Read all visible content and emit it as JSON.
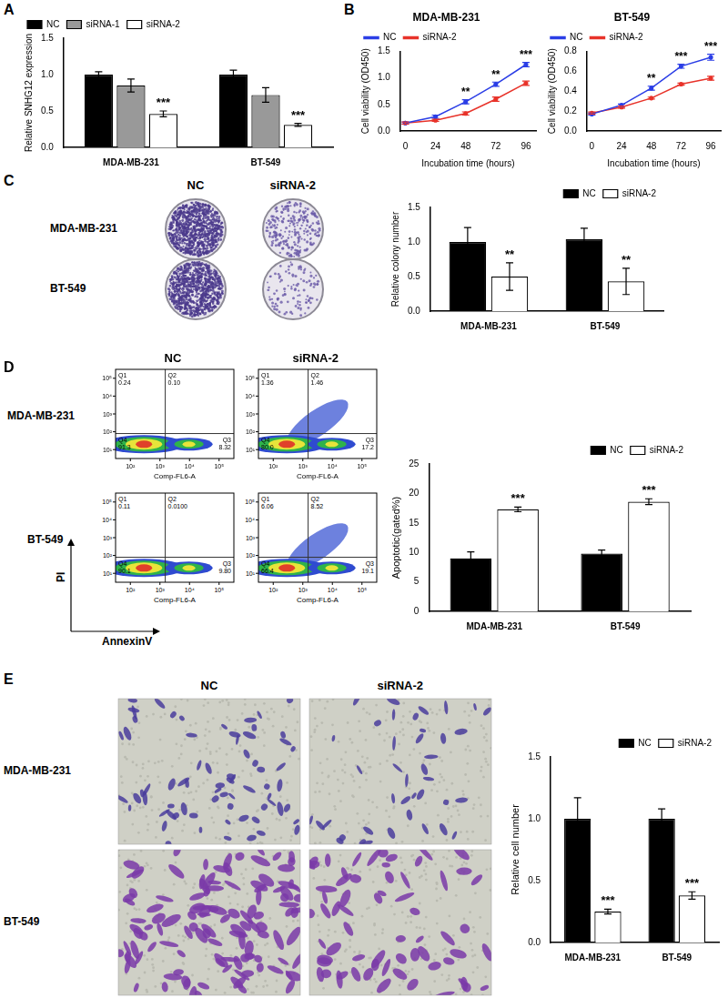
{
  "chart_data": [
    {
      "panel": "A",
      "type": "bar",
      "categories": [
        "MDA-MB-231",
        "BT-549"
      ],
      "y_label": "Relative SNHG12 expression",
      "ylim": [
        0,
        1.5
      ],
      "yticks": [
        {
          "value": 0,
          "label": "0.0"
        },
        {
          "value": 0.5,
          "label": "0.5"
        },
        {
          "value": 1,
          "label": "1.0"
        },
        {
          "value": 1.5,
          "label": "1.5"
        }
      ],
      "grid": false,
      "legend": "top-left",
      "series": [
        {
          "name": "NC",
          "color": "#000000",
          "values": [
            1.0,
            1.0
          ],
          "errors": [
            0.04,
            0.06
          ]
        },
        {
          "name": "siRNA-1",
          "color": "#999999",
          "values": [
            0.85,
            0.72
          ],
          "errors": [
            0.09,
            0.1
          ]
        },
        {
          "name": "siRNA-2",
          "color": "#ffffff",
          "values": [
            0.46,
            0.31
          ],
          "errors": [
            0.04,
            0.02
          ],
          "significance": [
            "***",
            "***"
          ]
        }
      ]
    },
    {
      "panel": "B",
      "type": "line",
      "title": "MDA-MB-231",
      "x": [
        0,
        24,
        48,
        72,
        96
      ],
      "xlim": [
        -4,
        104
      ],
      "xticks": [
        0,
        24,
        48,
        72,
        96
      ],
      "x_label": "Incubation time (hours)",
      "y_label": "Cell viability (OD450)",
      "ylim": [
        0,
        1.5
      ],
      "yticks": [
        {
          "value": 0,
          "label": "0.0"
        },
        {
          "value": 0.5,
          "label": "0.5"
        },
        {
          "value": 1,
          "label": "1.0"
        },
        {
          "value": 1.5,
          "label": "1.5"
        }
      ],
      "grid": false,
      "legend": "top-left",
      "significance": [
        null,
        null,
        "**",
        "**",
        "***"
      ],
      "series": [
        {
          "name": "NC",
          "color": "#2b3ee6",
          "values": [
            0.15,
            0.27,
            0.55,
            0.88,
            1.25
          ],
          "errors": [
            0.02,
            0.03,
            0.04,
            0.04,
            0.04
          ]
        },
        {
          "name": "siRNA-2",
          "color": "#e8332a",
          "values": [
            0.15,
            0.2,
            0.33,
            0.6,
            0.9
          ],
          "errors": [
            0.02,
            0.02,
            0.03,
            0.04,
            0.04
          ]
        }
      ]
    },
    {
      "type": "line",
      "title": "BT-549",
      "x": [
        0,
        24,
        48,
        72,
        96
      ],
      "xlim": [
        -4,
        104
      ],
      "xticks": [
        0,
        24,
        48,
        72,
        96
      ],
      "x_label": "Incubation time (hours)",
      "y_label": "Cell viability (OD450)",
      "ylim": [
        0,
        0.8
      ],
      "yticks": [
        {
          "value": 0,
          "label": "0.0"
        },
        {
          "value": 0.2,
          "label": "0.2"
        },
        {
          "value": 0.4,
          "label": "0.4"
        },
        {
          "value": 0.6,
          "label": "0.6"
        },
        {
          "value": 0.8,
          "label": "0.8"
        }
      ],
      "grid": false,
      "legend": "top-left",
      "significance": [
        null,
        null,
        "**",
        "***",
        "***"
      ],
      "series": [
        {
          "name": "NC",
          "color": "#2b3ee6",
          "values": [
            0.17,
            0.26,
            0.43,
            0.65,
            0.74
          ],
          "errors": [
            0.01,
            0.01,
            0.02,
            0.02,
            0.03
          ]
        },
        {
          "name": "siRNA-2",
          "color": "#e8332a",
          "values": [
            0.18,
            0.24,
            0.33,
            0.47,
            0.53
          ],
          "errors": [
            0.01,
            0.01,
            0.01,
            0.01,
            0.02
          ]
        }
      ]
    },
    {
      "type": "bar",
      "categories": [
        "MDA-MB-231",
        "BT-549"
      ],
      "y_label": "Relative colony number",
      "ylim": [
        0,
        1.5
      ],
      "yticks": [
        {
          "value": 0,
          "label": "0.0"
        },
        {
          "value": 0.5,
          "label": "0.5"
        },
        {
          "value": 1,
          "label": "1.0"
        },
        {
          "value": 1.5,
          "label": "1.5"
        }
      ],
      "grid": false,
      "legend": "top-right",
      "series": [
        {
          "name": "NC",
          "color": "#000000",
          "values": [
            1.0,
            1.04
          ],
          "errors": [
            0.21,
            0.16
          ]
        },
        {
          "name": "siRNA-2",
          "color": "#ffffff",
          "values": [
            0.5,
            0.43
          ],
          "errors": [
            0.2,
            0.19
          ],
          "significance": [
            "**",
            "**"
          ]
        }
      ]
    },
    {
      "type": "bar",
      "categories": [
        "MDA-MB-231",
        "BT-549"
      ],
      "y_label": "Apoptotic(gated%)",
      "ylim": [
        0,
        25
      ],
      "yticks": [
        0,
        5,
        10,
        15,
        20,
        25
      ],
      "grid": false,
      "legend": "top-right",
      "series": [
        {
          "name": "NC",
          "color": "#000000",
          "values": [
            9.0,
            9.8
          ],
          "errors": [
            1.1,
            0.6
          ]
        },
        {
          "name": "siRNA-2",
          "color": "#ffffff",
          "values": [
            17.3,
            18.6
          ],
          "errors": [
            0.4,
            0.5
          ],
          "significance": [
            "***",
            "***"
          ]
        }
      ]
    },
    {
      "type": "bar",
      "categories": [
        "MDA-MB-231",
        "BT-549"
      ],
      "y_label": "Relative cell number",
      "ylim": [
        0,
        1.5
      ],
      "yticks": [
        {
          "value": 0,
          "label": "0.0"
        },
        {
          "value": 0.5,
          "label": "0.5"
        },
        {
          "value": 1,
          "label": "1.0"
        },
        {
          "value": 1.5,
          "label": "1.5"
        }
      ],
      "grid": false,
      "legend": "top-right",
      "series": [
        {
          "name": "NC",
          "color": "#000000",
          "values": [
            1.0,
            1.0
          ],
          "errors": [
            0.17,
            0.08
          ]
        },
        {
          "name": "siRNA-2",
          "color": "#ffffff",
          "values": [
            0.25,
            0.38
          ],
          "errors": [
            0.02,
            0.03
          ],
          "significance": [
            "***",
            "***"
          ]
        }
      ]
    }
  ],
  "colony_images": {
    "panel": "C",
    "columns": [
      "NC",
      "siRNA-2"
    ],
    "rows": [
      "MDA-MB-231",
      "BT-549"
    ]
  },
  "flow_plots": {
    "panel": "D",
    "columns": [
      "NC",
      "siRNA-2"
    ],
    "rows": [
      "MDA-MB-231",
      "BT-549"
    ],
    "x_label": "Comp-FL6-A",
    "x_title": "AnnexinV",
    "y_title": "PI",
    "x_ticks": [
      "10²",
      "10³",
      "10⁴",
      "10⁵"
    ],
    "y_ticks": [
      "10¹",
      "10²",
      "10³",
      "10⁴",
      "10⁵"
    ],
    "plots": [
      [
        [
          {
            "label": "Q1",
            "value": "0.24"
          },
          {
            "label": "Q2",
            "value": "0.10"
          },
          {
            "label": "Q3",
            "value": "8.32"
          },
          {
            "label": "Q4",
            "value": "91.3"
          }
        ],
        [
          {
            "label": "Q1",
            "value": "1.36"
          },
          {
            "label": "Q2",
            "value": "1.46"
          },
          {
            "label": "Q3",
            "value": "17.2"
          },
          {
            "label": "Q4",
            "value": "80.0"
          }
        ]
      ],
      [
        [
          {
            "label": "Q1",
            "value": "0.11"
          },
          {
            "label": "Q2",
            "value": "0.0100"
          },
          {
            "label": "Q3",
            "value": "9.80"
          },
          {
            "label": "Q4",
            "value": "90.1"
          }
        ],
        [
          {
            "label": "Q1",
            "value": "6.06"
          },
          {
            "label": "Q2",
            "value": "8.52"
          },
          {
            "label": "Q3",
            "value": "19.1"
          },
          {
            "label": "Q4",
            "value": "66.4"
          }
        ]
      ]
    ]
  },
  "transwell_images": {
    "panel": "E",
    "columns": [
      "NC",
      "siRNA-2"
    ],
    "rows": [
      "MDA-MB-231",
      "BT-549"
    ]
  }
}
